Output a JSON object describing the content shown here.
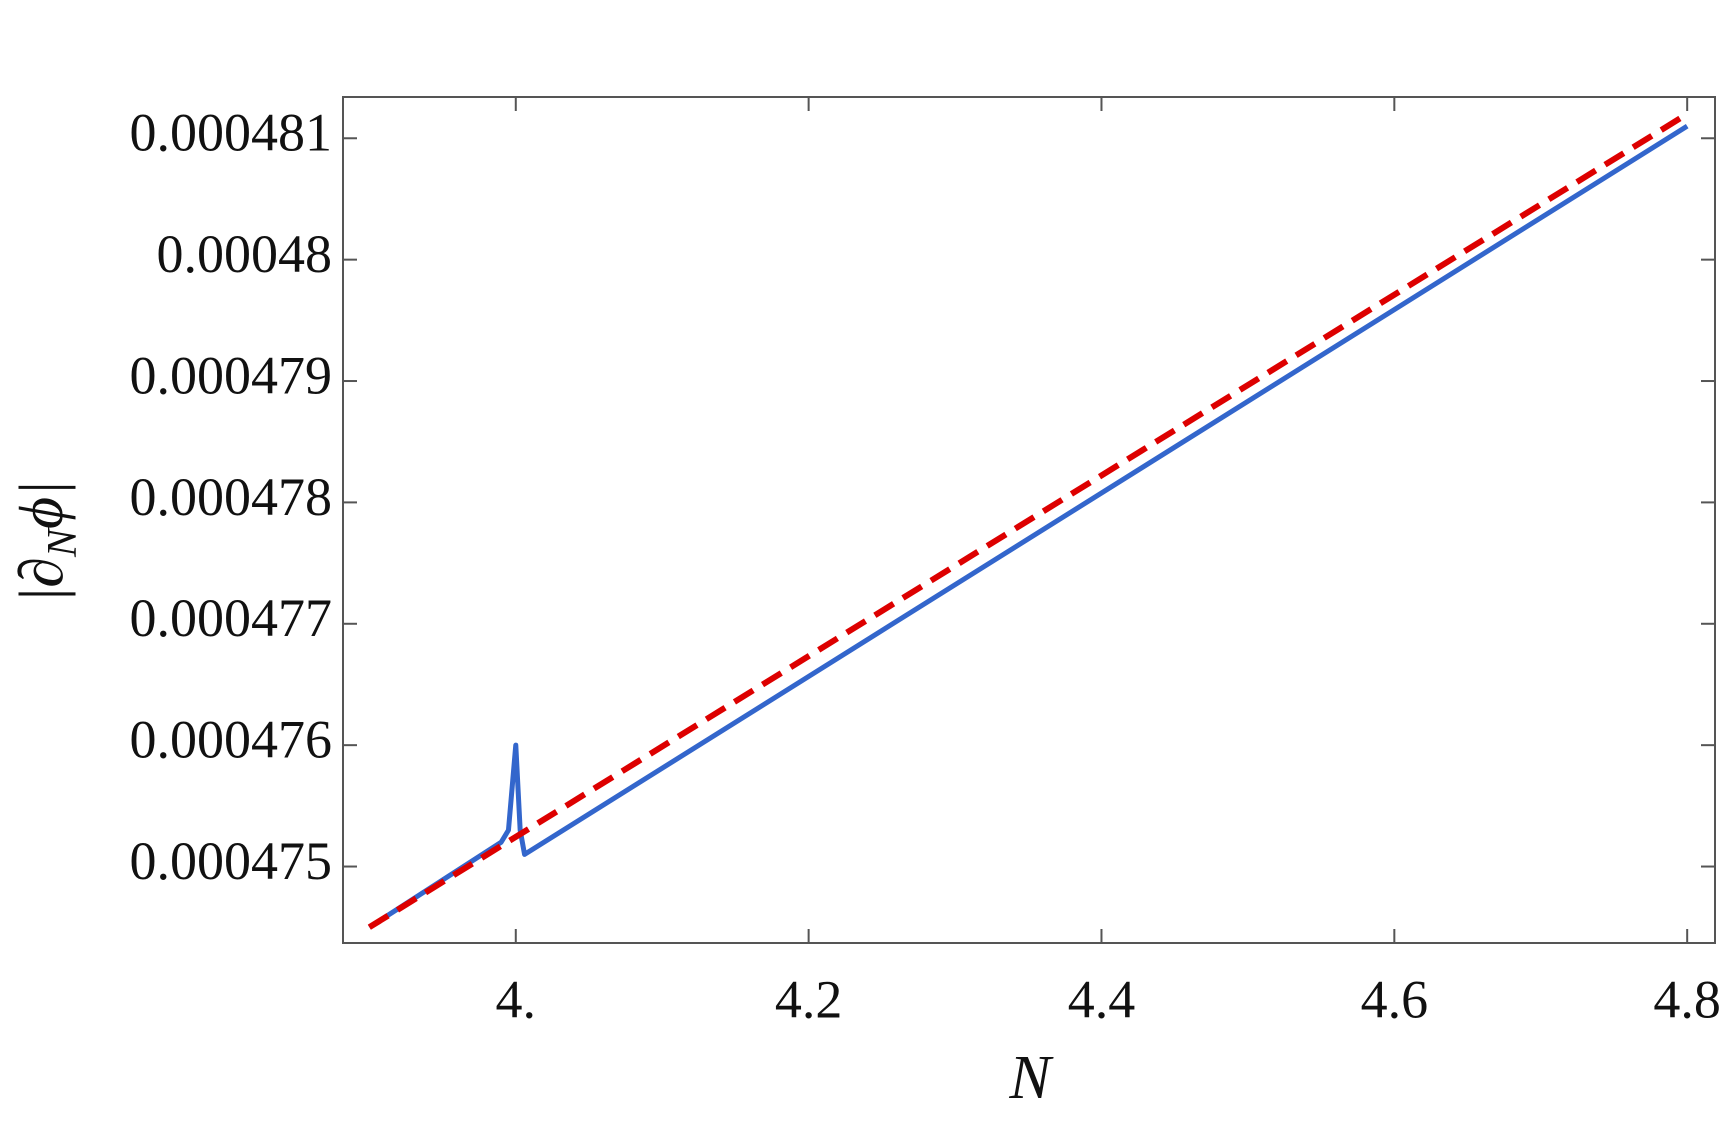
{
  "chart_data": {
    "type": "line",
    "xlabel": "N",
    "ylabel": [
      "|∂",
      "N",
      "ϕ|"
    ],
    "xlim": [
      3.882,
      4.819
    ],
    "ylim": [
      0.00047437,
      0.00048134
    ],
    "xticks": [
      {
        "value": 4,
        "label": "4."
      },
      4.2,
      4.4,
      4.6,
      4.8
    ],
    "yticks": [
      0.000475,
      0.000476,
      0.000477,
      0.000478,
      0.000479,
      0.00048,
      0.000481
    ],
    "series": [
      {
        "color": "#3366cc",
        "dashed": false,
        "x": [
          3.9,
          3.99,
          3.995,
          4.0,
          4.003,
          4.006,
          4.8
        ],
        "values": [
          0.0004745,
          0.0004752,
          0.0004753,
          0.000476,
          0.0004753,
          0.0004751,
          0.0004811
        ]
      },
      {
        "color": "#dd0000",
        "dashed": true,
        "x": [
          3.9,
          4.8
        ],
        "values": [
          0.0004745,
          0.0004812
        ]
      }
    ]
  }
}
